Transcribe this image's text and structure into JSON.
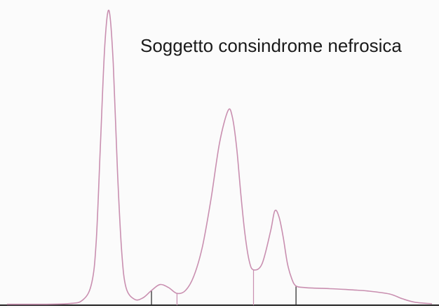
{
  "chart_data": {
    "type": "line",
    "title": "Soggetto consindrome nefrosica",
    "xlabel": "",
    "ylabel": "",
    "xlim": [
      0,
      100
    ],
    "ylim": [
      0,
      100
    ],
    "grid": false,
    "legend": "none",
    "series": [
      {
        "color": "#c98fb0",
        "x": [
          0,
          14,
          18,
          20,
          21,
          22,
          23,
          24,
          25,
          26,
          27,
          28,
          30,
          32,
          34,
          36,
          38,
          40,
          42,
          44,
          46,
          48,
          50,
          52,
          53,
          54,
          55,
          56,
          57,
          58,
          60,
          62,
          63,
          64,
          65,
          66,
          67,
          68,
          70,
          72,
          76,
          80,
          85,
          90,
          93,
          96,
          100
        ],
        "y": [
          0.3,
          0.5,
          2,
          8,
          22,
          55,
          88,
          100,
          82,
          45,
          18,
          6,
          2,
          2.5,
          5,
          7,
          6,
          4,
          5,
          10,
          20,
          36,
          55,
          66,
          64,
          54,
          38,
          24,
          15,
          12,
          14,
          25,
          32,
          30,
          23,
          14,
          9,
          6.5,
          6,
          5.8,
          5.6,
          5.3,
          4.8,
          3.8,
          2.2,
          1,
          0.5
        ]
      }
    ],
    "dividers": [
      {
        "x": 34,
        "color": "#222222"
      },
      {
        "x": 40,
        "color": "#c98fb0"
      },
      {
        "x": 58,
        "color": "#c98fb0"
      },
      {
        "x": 68,
        "color": "#222222"
      }
    ]
  },
  "colors": {
    "background": "#fbfbfb",
    "curve": "#c98fb0",
    "axis": "#222222"
  }
}
